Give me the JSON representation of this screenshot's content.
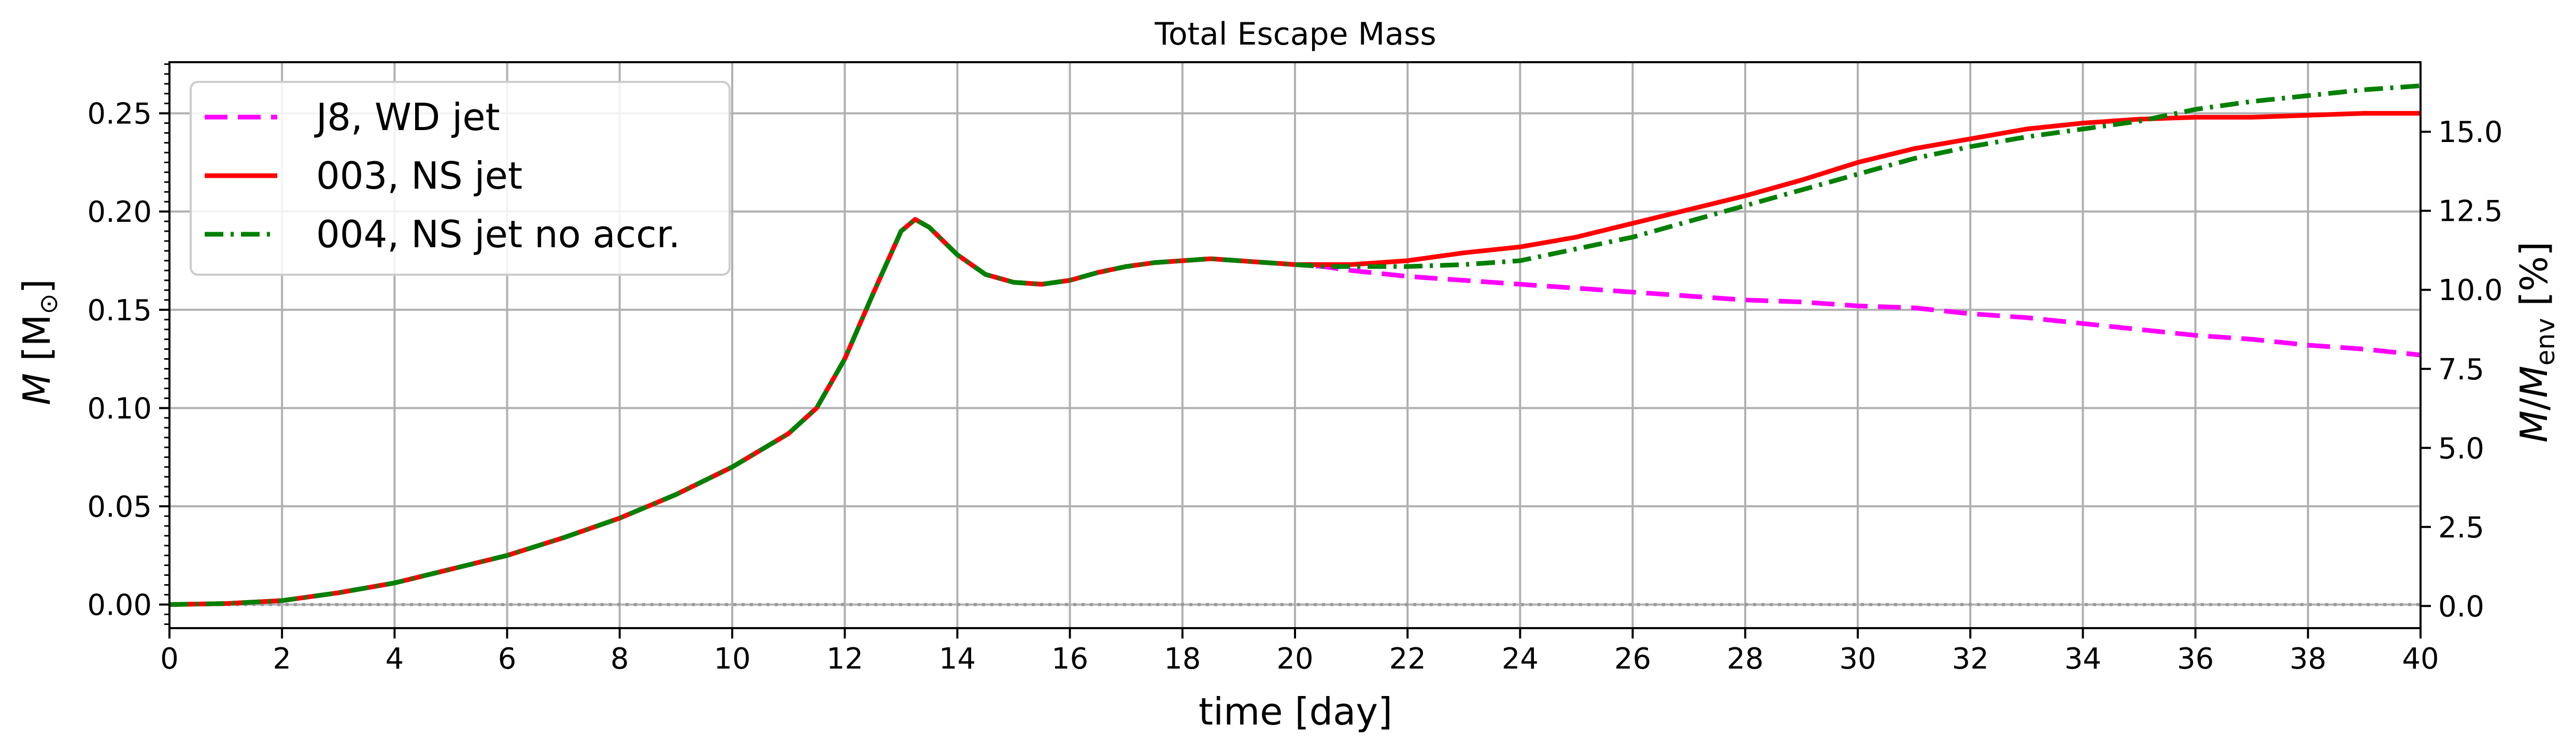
{
  "chart_data": {
    "type": "line",
    "title": "Total Escape Mass",
    "xlabel": "time [day]",
    "ylabel_parts": [
      "M",
      " [M",
      "⊙",
      "]"
    ],
    "y2label_parts": [
      "M",
      "/",
      "M",
      "env",
      " [%]"
    ],
    "xlim": [
      0,
      40
    ],
    "ylim": [
      -0.012,
      0.276
    ],
    "y2lim": [
      -0.7,
      17.2
    ],
    "xticks": [
      0,
      2,
      4,
      6,
      8,
      10,
      12,
      14,
      16,
      18,
      20,
      22,
      24,
      26,
      28,
      30,
      32,
      34,
      36,
      38,
      40
    ],
    "yticks": [
      "0.00",
      "0.05",
      "0.10",
      "0.15",
      "0.20",
      "0.25"
    ],
    "y2ticks": [
      "0.0",
      "2.5",
      "5.0",
      "7.5",
      "10.0",
      "12.5",
      "15.0"
    ],
    "grid": true,
    "legend_position": "top-left",
    "zero_reference_line": {
      "y": 0,
      "color": "#999999",
      "style": "dotted"
    },
    "series": [
      {
        "name": "J8, WD jet",
        "color": "#ff00ff",
        "style": "dashed",
        "x": [
          0,
          1,
          2,
          3,
          4,
          5,
          6,
          7,
          8,
          9,
          10,
          11,
          11.5,
          12,
          12.5,
          13,
          13.25,
          13.5,
          14,
          14.5,
          15,
          15.5,
          16,
          16.5,
          17,
          17.5,
          18,
          18.5,
          19,
          19.5,
          20,
          20.5,
          21,
          22,
          23,
          24,
          25,
          26,
          27,
          28,
          29,
          30,
          31,
          32,
          33,
          34,
          35,
          36,
          37,
          38,
          39,
          40
        ],
        "y": [
          0.0,
          0.0005,
          0.002,
          0.006,
          0.011,
          0.018,
          0.025,
          0.034,
          0.044,
          0.056,
          0.07,
          0.087,
          0.1,
          0.125,
          0.158,
          0.19,
          0.196,
          0.192,
          0.178,
          0.168,
          0.164,
          0.163,
          0.165,
          0.169,
          0.172,
          0.174,
          0.175,
          0.176,
          0.175,
          0.174,
          0.173,
          0.172,
          0.17,
          0.167,
          0.165,
          0.163,
          0.161,
          0.159,
          0.157,
          0.155,
          0.154,
          0.152,
          0.151,
          0.148,
          0.146,
          0.143,
          0.14,
          0.137,
          0.135,
          0.132,
          0.13,
          0.127
        ]
      },
      {
        "name": "003, NS jet",
        "color": "#ff0000",
        "style": "solid",
        "x": [
          0,
          1,
          2,
          3,
          4,
          5,
          6,
          7,
          8,
          9,
          10,
          11,
          11.5,
          12,
          12.5,
          13,
          13.25,
          13.5,
          14,
          14.5,
          15,
          15.5,
          16,
          16.5,
          17,
          17.5,
          18,
          18.5,
          19,
          19.5,
          20,
          20.5,
          21,
          22,
          23,
          24,
          25,
          26,
          27,
          28,
          29,
          30,
          31,
          32,
          33,
          34,
          35,
          36,
          37,
          38,
          39,
          40
        ],
        "y": [
          0.0,
          0.0005,
          0.002,
          0.006,
          0.011,
          0.018,
          0.025,
          0.034,
          0.044,
          0.056,
          0.07,
          0.087,
          0.1,
          0.125,
          0.158,
          0.19,
          0.196,
          0.192,
          0.178,
          0.168,
          0.164,
          0.163,
          0.165,
          0.169,
          0.172,
          0.174,
          0.175,
          0.176,
          0.175,
          0.174,
          0.173,
          0.173,
          0.173,
          0.175,
          0.179,
          0.182,
          0.187,
          0.194,
          0.201,
          0.208,
          0.216,
          0.225,
          0.232,
          0.237,
          0.242,
          0.245,
          0.247,
          0.248,
          0.248,
          0.249,
          0.25,
          0.25
        ]
      },
      {
        "name": "004, NS jet no accr.",
        "color": "#008000",
        "style": "dashdot",
        "x": [
          0,
          1,
          2,
          3,
          4,
          5,
          6,
          7,
          8,
          9,
          10,
          11,
          11.5,
          12,
          12.5,
          13,
          13.25,
          13.5,
          14,
          14.5,
          15,
          15.5,
          16,
          16.5,
          17,
          17.5,
          18,
          18.5,
          19,
          19.5,
          20,
          20.5,
          21,
          22,
          23,
          24,
          25,
          26,
          27,
          28,
          29,
          30,
          31,
          32,
          33,
          34,
          35,
          36,
          37,
          38,
          39,
          40
        ],
        "y": [
          0.0,
          0.0005,
          0.002,
          0.006,
          0.011,
          0.018,
          0.025,
          0.034,
          0.044,
          0.056,
          0.07,
          0.087,
          0.1,
          0.125,
          0.158,
          0.19,
          0.196,
          0.192,
          0.178,
          0.168,
          0.164,
          0.163,
          0.165,
          0.169,
          0.172,
          0.174,
          0.175,
          0.176,
          0.175,
          0.174,
          0.173,
          0.172,
          0.172,
          0.172,
          0.173,
          0.175,
          0.181,
          0.187,
          0.195,
          0.203,
          0.211,
          0.219,
          0.227,
          0.233,
          0.238,
          0.242,
          0.246,
          0.252,
          0.256,
          0.259,
          0.262,
          0.264
        ]
      }
    ]
  }
}
